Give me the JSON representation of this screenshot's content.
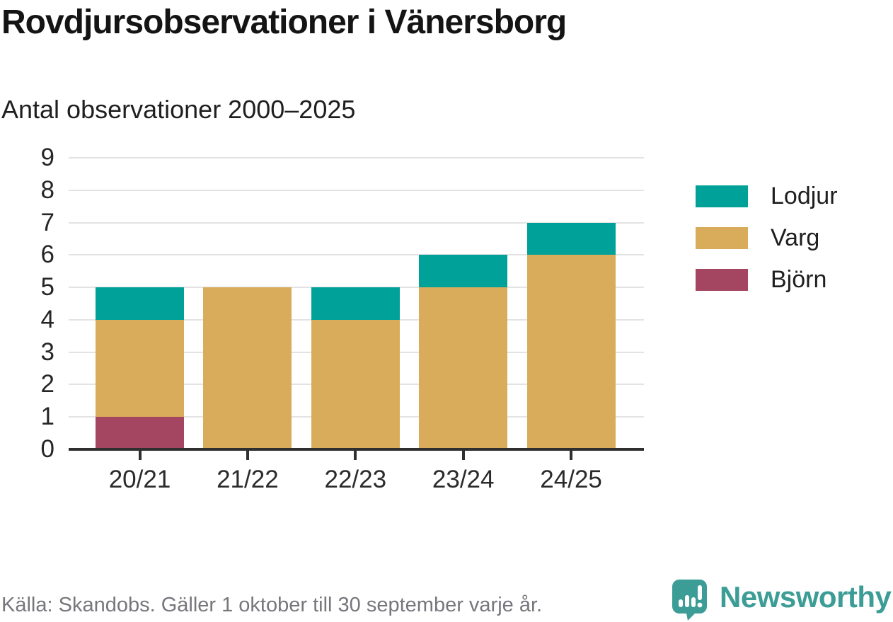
{
  "header": {
    "title": "Rovdjursobservationer i Vänersborg",
    "subtitle": "Antal observationer 2000–2025"
  },
  "footer": {
    "source": "Källa: Skandobs. Gäller 1 oktober till 30 september varje år.",
    "brand": "Newsworthy"
  },
  "colors": {
    "lodjur_teal": "#00a199",
    "varg_gold": "#d9ac5c",
    "bjorn_maroon": "#a44561",
    "brand_teal": "#3c9d96",
    "gridline": "#e3e3e3",
    "axis": "#2f2f2f",
    "muted_text": "#76767c"
  },
  "chart_data": {
    "type": "bar",
    "stacked": true,
    "title": "Rovdjursobservationer i Vänersborg",
    "subtitle": "Antal observationer 2000–2025",
    "xlabel": "",
    "ylabel": "",
    "categories": [
      "20/21",
      "21/22",
      "22/23",
      "23/24",
      "24/25"
    ],
    "series": [
      {
        "name": "Björn",
        "color": "#a44561",
        "values": [
          1,
          0,
          0,
          0,
          0
        ]
      },
      {
        "name": "Varg",
        "color": "#d9ac5c",
        "values": [
          3,
          5,
          4,
          5,
          6
        ]
      },
      {
        "name": "Lodjur",
        "color": "#00a199",
        "values": [
          1,
          0,
          1,
          1,
          1
        ]
      }
    ],
    "totals": [
      5,
      5,
      5,
      6,
      7
    ],
    "ylim": [
      0,
      9
    ],
    "yticks": [
      0,
      1,
      2,
      3,
      4,
      5,
      6,
      7,
      8,
      9
    ],
    "grid": true,
    "legend": {
      "position": "right",
      "order": [
        "Lodjur",
        "Varg",
        "Björn"
      ]
    }
  }
}
